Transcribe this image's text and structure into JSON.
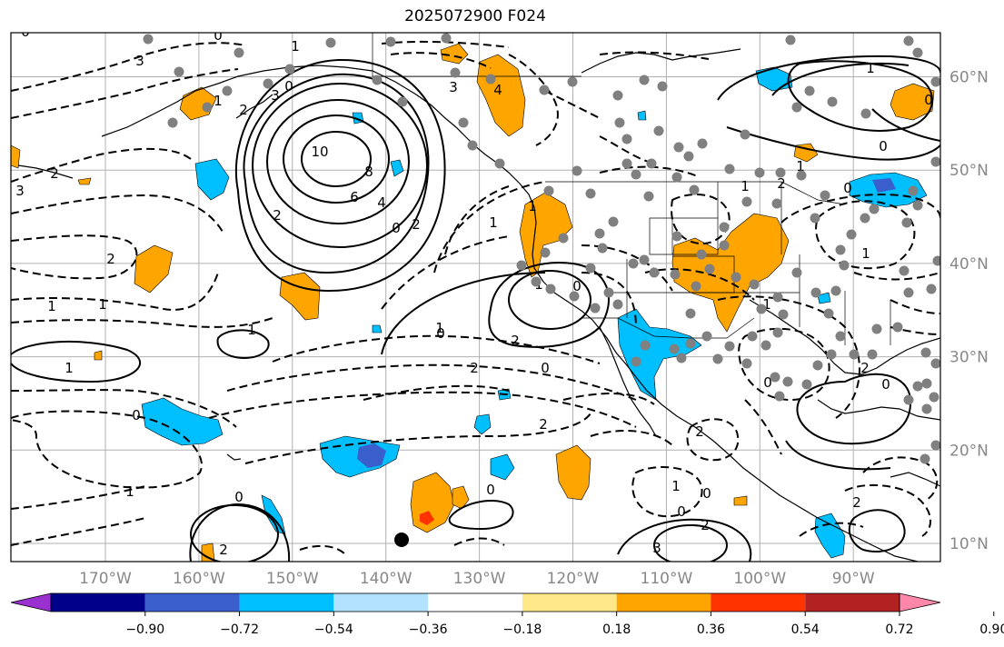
{
  "title": "2025072900 F024",
  "lat_labels": [
    {
      "label": "60°N",
      "lat": 60
    },
    {
      "label": "50°N",
      "lat": 50
    },
    {
      "label": "40°N",
      "lat": 40
    },
    {
      "label": "30°N",
      "lat": 30
    },
    {
      "label": "20°N",
      "lat": 20
    },
    {
      "label": "10°N",
      "lat": 10
    }
  ],
  "lon_labels": [
    {
      "label": "170°W",
      "lon": -170
    },
    {
      "label": "160°W",
      "lon": -160
    },
    {
      "label": "150°W",
      "lon": -150
    },
    {
      "label": "140°W",
      "lon": -140
    },
    {
      "label": "130°W",
      "lon": -130
    },
    {
      "label": "120°W",
      "lon": -120
    },
    {
      "label": "110°W",
      "lon": -110
    },
    {
      "label": "100°W",
      "lon": -100
    },
    {
      "label": "90°W",
      "lon": -90
    }
  ],
  "map_extent": {
    "lon_min": -180,
    "lon_max": -80,
    "lat_min": 8,
    "lat_max": 65
  },
  "colorbar": {
    "ticks": [
      "−0.90",
      "−0.72",
      "−0.54",
      "−0.36",
      "−0.18",
      "0.18",
      "0.36",
      "0.54",
      "0.72",
      "0.90"
    ],
    "colors": [
      "#9b30d0",
      "#00008b",
      "#3a5fcd",
      "#00bfff",
      "#b2e2ff",
      "#ffffff",
      "#ffe88a",
      "#ffa500",
      "#ff3300",
      "#b22222",
      "#ff88aa"
    ]
  },
  "contour_labels": [
    "0",
    "0",
    "1",
    "3",
    "0",
    "3",
    "2",
    "1",
    "10",
    "8",
    "6",
    "4",
    "2",
    "0",
    "2",
    "3",
    "2",
    "2",
    "1",
    "1",
    "1",
    "1",
    "0",
    "1",
    "2",
    "0",
    "2",
    "1",
    "4",
    "3",
    "1",
    "2",
    "0",
    "1",
    "0",
    "2",
    "0",
    "1",
    "0",
    "2",
    "1",
    "0",
    "3",
    "2",
    "1",
    "0",
    "0",
    "1",
    "2",
    "0",
    "1",
    "0",
    "2",
    "1",
    "0",
    "2",
    "0",
    "1"
  ],
  "colors": {
    "positive_shade": "#ffa500",
    "strong_positive_shade": "#ff3300",
    "negative_shade": "#00bfff",
    "strong_negative_shade": "#3a5fcd",
    "station_dot": "#808080",
    "contour": "#000000",
    "grid": "#b0b0b0"
  }
}
